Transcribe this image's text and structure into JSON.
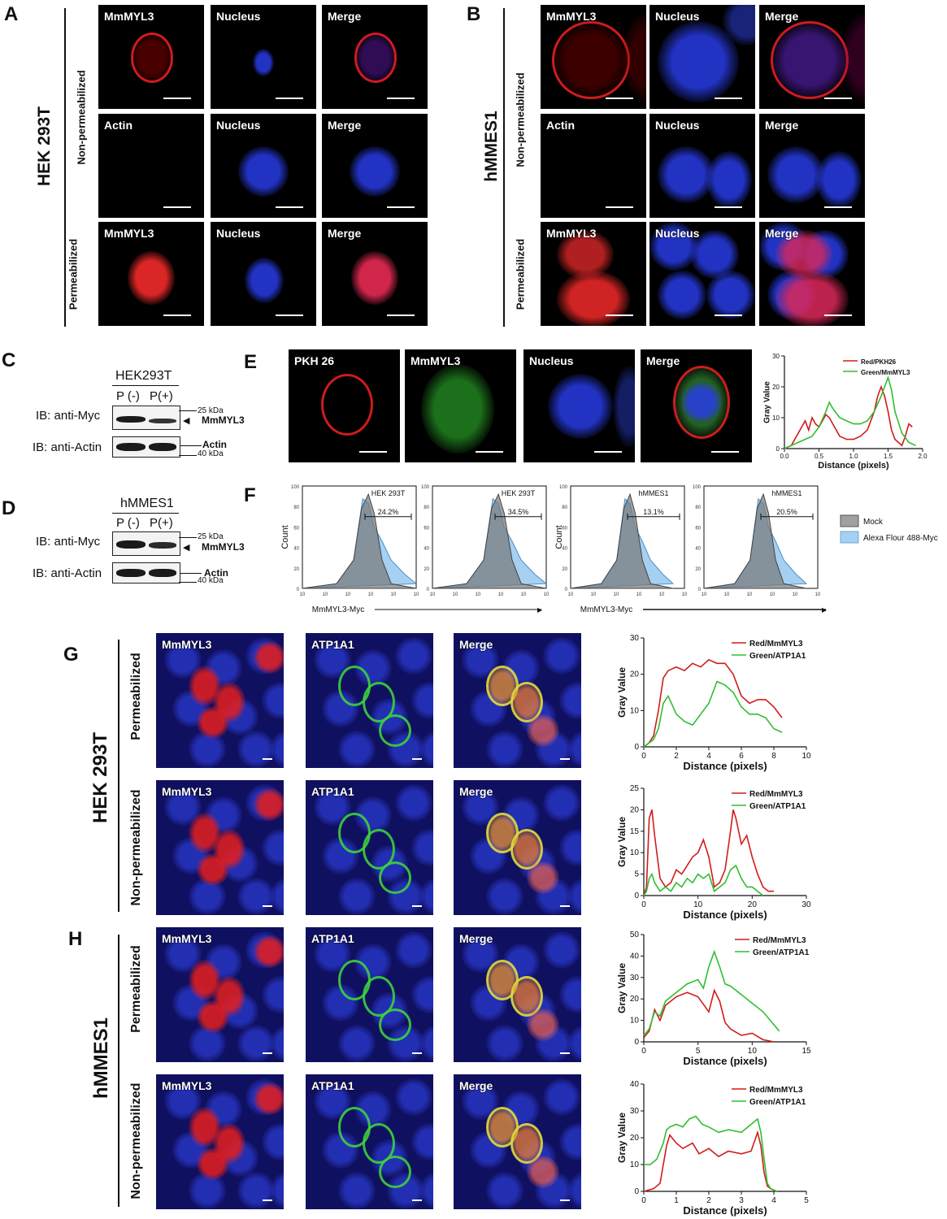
{
  "panels": {
    "A": {
      "letter": "A",
      "cell": "HEK 293T",
      "rows": [
        "Non-permeabilized",
        "Permeabilized"
      ],
      "tiles": [
        [
          "MmMYL3",
          "Nucleus",
          "Merge"
        ],
        [
          "Actin",
          "Nucleus",
          "Merge"
        ],
        [
          "MmMYL3",
          "Nucleus",
          "Merge"
        ]
      ]
    },
    "B": {
      "letter": "B",
      "cell": "hMMES1",
      "rows": [
        "Non-permeabilized",
        "Permeabilized"
      ],
      "tiles": [
        [
          "MmMYL3",
          "Nucleus",
          "Merge"
        ],
        [
          "Actin",
          "Nucleus",
          "Merge"
        ],
        [
          "MmMYL3",
          "Nucleus",
          "Merge"
        ]
      ]
    },
    "C": {
      "letter": "C",
      "cell": "HEK293T",
      "lanes": [
        "P (-)",
        "P(+)"
      ],
      "ib1": "IB: anti-Myc",
      "ib2": "IB: anti-Actin",
      "m25": "25 kDa",
      "m40": "40 kDa",
      "target": "MmMYL3",
      "actin": "Actin"
    },
    "D": {
      "letter": "D",
      "cell": "hMMES1",
      "lanes": [
        "P (-)",
        "P(+)"
      ],
      "ib1": "IB: anti-Myc",
      "ib2": "IB: anti-Actin",
      "m25": "25 kDa",
      "m40": "40 kDa",
      "target": "MmMYL3",
      "actin": "Actin"
    },
    "E": {
      "letter": "E",
      "tiles": [
        "PKH 26",
        "MmMYL3",
        "Nucleus",
        "Merge"
      ]
    },
    "F": {
      "letter": "F",
      "ylabel": "Count",
      "xlabel": "MmMYL3-Myc",
      "plots": [
        {
          "cell": "HEK 293T",
          "pct": "24.2%"
        },
        {
          "cell": "HEK 293T",
          "pct": "34.5%"
        },
        {
          "cell": "hMMES1",
          "pct": "13.1%"
        },
        {
          "cell": "hMMES1",
          "pct": "20.5%"
        }
      ],
      "yticks": [
        "100",
        "80",
        "60",
        "40",
        "20",
        "0"
      ],
      "xticks": [
        "10",
        "10",
        "10",
        "10",
        "10",
        "10"
      ],
      "legend": [
        "Mock",
        "Alexa Flour 488-Myc"
      ]
    },
    "G": {
      "letter": "G",
      "cell": "HEK 293T",
      "rows": [
        "Permeabilized",
        "Non-permeabilized"
      ],
      "tiles": [
        [
          "MmMYL3",
          "ATP1A1",
          "Merge"
        ],
        [
          "MmMYL3",
          "ATP1A1",
          "Merge"
        ]
      ]
    },
    "H": {
      "letter": "H",
      "cell": "hMMES1",
      "rows": [
        "Permeabilized",
        "Non-permeabilized"
      ],
      "tiles": [
        [
          "MmMYL3",
          "ATP1A1",
          "Merge"
        ],
        [
          "MmMYL3",
          "ATP1A1",
          "Merge"
        ]
      ]
    }
  },
  "chart_data": [
    {
      "id": "E",
      "type": "line",
      "xlabel": "Distance (pixels)",
      "ylabel": "Gray Value",
      "xlim": [
        0,
        2.0
      ],
      "ylim": [
        0,
        30
      ],
      "xticks": [
        "0.0",
        "0.5",
        "1.0",
        "1.5",
        "2.0"
      ],
      "yticks": [
        "0",
        "10",
        "20",
        "30"
      ],
      "series": [
        {
          "name": "Red/PKH26",
          "color": "#d01c1c",
          "x": [
            0,
            0.1,
            0.2,
            0.3,
            0.35,
            0.4,
            0.45,
            0.5,
            0.55,
            0.6,
            0.65,
            0.7,
            0.75,
            0.8,
            0.9,
            1.0,
            1.1,
            1.2,
            1.3,
            1.35,
            1.4,
            1.45,
            1.5,
            1.55,
            1.6,
            1.7,
            1.75,
            1.8,
            1.85
          ],
          "y": [
            0,
            1,
            5,
            9,
            6,
            10,
            8,
            7,
            9,
            11,
            10,
            8,
            6,
            4,
            3,
            3,
            4,
            6,
            12,
            17,
            20,
            17,
            12,
            6,
            3,
            1,
            4,
            8,
            7
          ]
        },
        {
          "name": "Green/MmMYL3",
          "color": "#2fbf2f",
          "x": [
            0,
            0.1,
            0.2,
            0.3,
            0.4,
            0.5,
            0.6,
            0.65,
            0.7,
            0.8,
            0.9,
            1.0,
            1.1,
            1.2,
            1.3,
            1.4,
            1.45,
            1.5,
            1.55,
            1.6,
            1.7,
            1.8,
            1.9
          ],
          "y": [
            0,
            1,
            2,
            3,
            4,
            7,
            12,
            15,
            13,
            10,
            9,
            8,
            8,
            9,
            12,
            17,
            20,
            23,
            19,
            12,
            5,
            2,
            1
          ]
        }
      ]
    },
    {
      "id": "G1",
      "type": "line",
      "xlabel": "Distance (pixels)",
      "ylabel": "Gray Value",
      "xlim": [
        0,
        10
      ],
      "ylim": [
        0,
        30
      ],
      "xticks": [
        "0",
        "2",
        "4",
        "6",
        "8",
        "10"
      ],
      "yticks": [
        "0",
        "10",
        "20",
        "30"
      ],
      "series": [
        {
          "name": "Red/MmMYL3",
          "color": "#d01c1c",
          "x": [
            0,
            0.3,
            0.6,
            0.9,
            1.2,
            1.5,
            2,
            2.5,
            3,
            3.5,
            4,
            4.5,
            5,
            5.5,
            6,
            6.5,
            7,
            7.5,
            8,
            8.5
          ],
          "y": [
            0,
            1,
            3,
            10,
            19,
            21,
            22,
            21,
            23,
            22,
            24,
            23,
            23,
            20,
            14,
            12,
            13,
            13,
            11,
            8
          ]
        },
        {
          "name": "Green/ATP1A1",
          "color": "#2fbf2f",
          "x": [
            0,
            0.3,
            0.6,
            0.9,
            1.2,
            1.5,
            2,
            2.5,
            3,
            3.5,
            4,
            4.5,
            5,
            5.5,
            6,
            6.5,
            7,
            7.5,
            8,
            8.5
          ],
          "y": [
            0,
            1,
            2,
            5,
            12,
            14,
            9,
            7,
            6,
            9,
            12,
            18,
            17,
            15,
            11,
            9,
            9,
            8,
            5,
            4
          ]
        }
      ]
    },
    {
      "id": "G2",
      "type": "line",
      "xlabel": "Distance (pixels)",
      "ylabel": "Gray Value",
      "xlim": [
        0,
        30
      ],
      "ylim": [
        0,
        25
      ],
      "xticks": [
        "0",
        "10",
        "20",
        "30"
      ],
      "yticks": [
        "0",
        "5",
        "10",
        "15",
        "20",
        "25"
      ],
      "series": [
        {
          "name": "Red/MmMYL3",
          "color": "#d01c1c",
          "x": [
            0,
            0.5,
            1,
            1.5,
            2,
            3,
            4,
            5,
            6,
            7,
            8,
            9,
            10,
            11,
            12,
            13,
            14,
            15,
            16,
            16.5,
            17,
            18,
            19,
            20,
            21,
            22,
            23,
            24
          ],
          "y": [
            0,
            2,
            18,
            20,
            14,
            4,
            2,
            3,
            6,
            5,
            7,
            9,
            10,
            13,
            9,
            2,
            3,
            6,
            15,
            20,
            18,
            12,
            14,
            9,
            5,
            2,
            1,
            1
          ]
        },
        {
          "name": "Green/ATP1A1",
          "color": "#2fbf2f",
          "x": [
            0,
            0.5,
            1,
            1.5,
            2,
            3,
            4,
            5,
            6,
            7,
            8,
            9,
            10,
            11,
            12,
            13,
            14,
            15,
            16,
            17,
            18,
            19,
            20,
            21,
            22
          ],
          "y": [
            0,
            1,
            4,
            5,
            3,
            1,
            2,
            1,
            3,
            2,
            4,
            3,
            5,
            4,
            5,
            1,
            2,
            3,
            6,
            7,
            4,
            2,
            2,
            1,
            0
          ]
        }
      ]
    },
    {
      "id": "H1",
      "type": "line",
      "xlabel": "Distance (pixels)",
      "ylabel": "Gray Value",
      "xlim": [
        0,
        15
      ],
      "ylim": [
        0,
        50
      ],
      "xticks": [
        "0",
        "5",
        "10",
        "15"
      ],
      "yticks": [
        "0",
        "10",
        "20",
        "30",
        "40",
        "50"
      ],
      "series": [
        {
          "name": "Red/MmMYL3",
          "color": "#d01c1c",
          "x": [
            0,
            0.5,
            1,
            1.5,
            2,
            3,
            4,
            5,
            6,
            6.5,
            7,
            7.5,
            8,
            9,
            10,
            11,
            12
          ],
          "y": [
            2,
            5,
            15,
            10,
            17,
            21,
            23,
            21,
            14,
            24,
            19,
            9,
            6,
            3,
            4,
            1,
            0
          ]
        },
        {
          "name": "Green/ATP1A1",
          "color": "#2fbf2f",
          "x": [
            0,
            0.5,
            1,
            1.5,
            2,
            3,
            4,
            5,
            5.5,
            6,
            6.5,
            7,
            7.5,
            8,
            9,
            10,
            11,
            12,
            12.5
          ],
          "y": [
            3,
            6,
            14,
            12,
            19,
            23,
            27,
            29,
            25,
            35,
            42,
            35,
            27,
            26,
            22,
            18,
            14,
            8,
            5
          ]
        }
      ]
    },
    {
      "id": "H2",
      "type": "line",
      "xlabel": "Distance (pixels)",
      "ylabel": "Gray Value",
      "xlim": [
        0,
        5
      ],
      "ylim": [
        0,
        40
      ],
      "xticks": [
        "0",
        "1",
        "2",
        "3",
        "4",
        "5"
      ],
      "yticks": [
        "0",
        "10",
        "20",
        "30",
        "40"
      ],
      "series": [
        {
          "name": "Red/MmMYL3",
          "color": "#d01c1c",
          "x": [
            0,
            0.3,
            0.5,
            0.6,
            0.7,
            0.8,
            1,
            1.2,
            1.5,
            1.7,
            2,
            2.3,
            2.6,
            3,
            3.3,
            3.5,
            3.6,
            3.7,
            3.8,
            3.9,
            4.1
          ],
          "y": [
            0,
            1,
            3,
            10,
            17,
            21,
            18,
            16,
            18,
            14,
            16,
            13,
            15,
            14,
            15,
            22,
            17,
            7,
            2,
            1,
            0
          ]
        },
        {
          "name": "Green/ATP1A1",
          "color": "#2fbf2f",
          "x": [
            0,
            0.2,
            0.4,
            0.6,
            0.7,
            0.8,
            1,
            1.2,
            1.4,
            1.6,
            1.8,
            2,
            2.3,
            2.6,
            3,
            3.3,
            3.5,
            3.6,
            3.7,
            3.8,
            3.9,
            4.1
          ],
          "y": [
            10,
            10,
            12,
            18,
            23,
            24,
            25,
            24,
            27,
            28,
            25,
            24,
            22,
            23,
            22,
            25,
            27,
            22,
            12,
            3,
            1,
            0
          ]
        }
      ]
    }
  ]
}
